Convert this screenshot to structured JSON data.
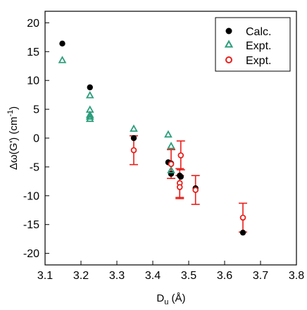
{
  "chart_data": {
    "type": "scatter",
    "title": "",
    "xlabel": {
      "main": "D",
      "sub": "u",
      "rest": " (Å)"
    },
    "ylabel": {
      "main": "Δω(G')",
      "unit": "(cm",
      "sup": "-1",
      "close": ")"
    },
    "xlim": [
      3.1,
      3.8
    ],
    "ylim": [
      -22,
      22
    ],
    "xticks": [
      "3.1",
      "3.2",
      "3.3",
      "3.4",
      "3.5",
      "3.6",
      "3.7",
      "3.8"
    ],
    "yticks": [
      "-20",
      "-15",
      "-10",
      "-5",
      "0",
      "5",
      "10",
      "15",
      "20"
    ],
    "xtick_values": [
      3.1,
      3.2,
      3.3,
      3.4,
      3.5,
      3.6,
      3.7,
      3.8
    ],
    "ytick_values": [
      -20,
      -15,
      -10,
      -5,
      0,
      5,
      10,
      15,
      20
    ],
    "grid": false,
    "legend_position": "top-right",
    "series": [
      {
        "name": "Calc.",
        "marker": "filled-circle",
        "color": "#000000",
        "points": [
          [
            3.148,
            16.4
          ],
          [
            3.225,
            8.8
          ],
          [
            3.347,
            0.0
          ],
          [
            3.443,
            -4.2
          ],
          [
            3.451,
            -4.4
          ],
          [
            3.451,
            -6.2
          ],
          [
            3.475,
            -6.5
          ],
          [
            3.478,
            -6.7
          ],
          [
            3.519,
            -8.7
          ],
          [
            3.651,
            -16.4
          ]
        ]
      },
      {
        "name": "Expt.",
        "marker": "open-triangle",
        "color": "#2e9e7c",
        "points": [
          [
            3.148,
            13.5
          ],
          [
            3.225,
            7.4
          ],
          [
            3.225,
            4.9
          ],
          [
            3.225,
            4.0
          ],
          [
            3.225,
            3.7
          ],
          [
            3.225,
            3.3
          ],
          [
            3.347,
            1.6
          ],
          [
            3.443,
            0.6
          ],
          [
            3.451,
            -1.4
          ],
          [
            3.451,
            -5.6
          ]
        ]
      },
      {
        "name": "Expt.",
        "marker": "open-circle",
        "color": "#e8201c",
        "points": [
          {
            "x": 3.347,
            "y": -2.1,
            "err": 2.5
          },
          {
            "x": 3.451,
            "y": -4.5,
            "err": 2.5
          },
          {
            "x": 3.475,
            "y": -7.8,
            "err": 2.5
          },
          {
            "x": 3.478,
            "y": -3.0,
            "err": 2.5
          },
          {
            "x": 3.475,
            "y": -8.5,
            "err": 2.0
          },
          {
            "x": 3.519,
            "y": -9.0,
            "err": 2.5
          },
          {
            "x": 3.651,
            "y": -13.8,
            "err": 2.5
          }
        ]
      }
    ]
  }
}
